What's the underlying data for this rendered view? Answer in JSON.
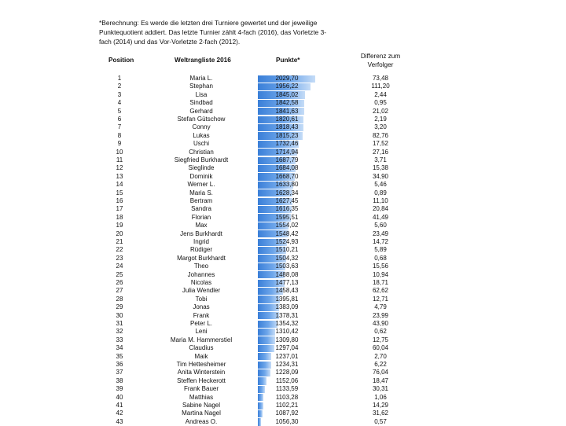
{
  "note": "*Berechnung: Es werde die letzten drei Turniere gewertet und der jeweilige Punktequotient addiert. Das letzte Turnier zählt 4-fach (2016), das Vorletzte 3-fach (2014) und das Vor-Vorletzte 2-fach (2012).",
  "headers": {
    "position": "Position",
    "name": "Weltrangliste 2016",
    "points": "Punkte*",
    "diff_line1": "Differenz zum",
    "diff_line2": "Verfolger"
  },
  "points_scale": {
    "min": 1000,
    "max": 2050
  },
  "rows": [
    {
      "pos": "1",
      "name": "Maria L.",
      "points": "2029,70",
      "pv": 2029.7,
      "diff": "73,48"
    },
    {
      "pos": "2",
      "name": "Stephan",
      "points": "1956,22",
      "pv": 1956.22,
      "diff": "111,20"
    },
    {
      "pos": "3",
      "name": "Lisa",
      "points": "1845,02",
      "pv": 1845.02,
      "diff": "2,44"
    },
    {
      "pos": "4",
      "name": "Sindbad",
      "points": "1842,58",
      "pv": 1842.58,
      "diff": "0,95"
    },
    {
      "pos": "5",
      "name": "Gerhard",
      "points": "1841,63",
      "pv": 1841.63,
      "diff": "21,02"
    },
    {
      "pos": "6",
      "name": "Stefan Gütschow",
      "points": "1820,61",
      "pv": 1820.61,
      "diff": "2,19"
    },
    {
      "pos": "7",
      "name": "Conny",
      "points": "1818,43",
      "pv": 1818.43,
      "diff": "3,20"
    },
    {
      "pos": "8",
      "name": "Lukas",
      "points": "1815,23",
      "pv": 1815.23,
      "diff": "82,76"
    },
    {
      "pos": "9",
      "name": "Uschi",
      "points": "1732,46",
      "pv": 1732.46,
      "diff": "17,52"
    },
    {
      "pos": "10",
      "name": "Christian",
      "points": "1714,94",
      "pv": 1714.94,
      "diff": "27,16"
    },
    {
      "pos": "11",
      "name": "Siegfried Burkhardt",
      "points": "1687,79",
      "pv": 1687.79,
      "diff": "3,71"
    },
    {
      "pos": "12",
      "name": "Sieglinde",
      "points": "1684,08",
      "pv": 1684.08,
      "diff": "15,38"
    },
    {
      "pos": "13",
      "name": "Dominik",
      "points": "1668,70",
      "pv": 1668.7,
      "diff": "34,90"
    },
    {
      "pos": "14",
      "name": "Werner L.",
      "points": "1633,80",
      "pv": 1633.8,
      "diff": "5,46"
    },
    {
      "pos": "15",
      "name": "Maria S.",
      "points": "1628,34",
      "pv": 1628.34,
      "diff": "0,89"
    },
    {
      "pos": "16",
      "name": "Bertram",
      "points": "1627,45",
      "pv": 1627.45,
      "diff": "11,10"
    },
    {
      "pos": "17",
      "name": "Sandra",
      "points": "1616,35",
      "pv": 1616.35,
      "diff": "20,84"
    },
    {
      "pos": "18",
      "name": "Florian",
      "points": "1595,51",
      "pv": 1595.51,
      "diff": "41,49"
    },
    {
      "pos": "19",
      "name": "Max",
      "points": "1554,02",
      "pv": 1554.02,
      "diff": "5,60"
    },
    {
      "pos": "20",
      "name": "Jens Burkhardt",
      "points": "1548,42",
      "pv": 1548.42,
      "diff": "23,49"
    },
    {
      "pos": "21",
      "name": "Ingrid",
      "points": "1524,93",
      "pv": 1524.93,
      "diff": "14,72"
    },
    {
      "pos": "22",
      "name": "Rüdiger",
      "points": "1510,21",
      "pv": 1510.21,
      "diff": "5,89"
    },
    {
      "pos": "23",
      "name": "Margot Burkhardt",
      "points": "1504,32",
      "pv": 1504.32,
      "diff": "0,68"
    },
    {
      "pos": "24",
      "name": "Theo",
      "points": "1503,63",
      "pv": 1503.63,
      "diff": "15,56"
    },
    {
      "pos": "25",
      "name": "Johannes",
      "points": "1488,08",
      "pv": 1488.08,
      "diff": "10,94"
    },
    {
      "pos": "26",
      "name": "Nicolas",
      "points": "1477,13",
      "pv": 1477.13,
      "diff": "18,71"
    },
    {
      "pos": "27",
      "name": "Julia Wendler",
      "points": "1458,43",
      "pv": 1458.43,
      "diff": "62,62"
    },
    {
      "pos": "28",
      "name": "Tobi",
      "points": "1395,81",
      "pv": 1395.81,
      "diff": "12,71"
    },
    {
      "pos": "29",
      "name": "Jonas",
      "points": "1383,09",
      "pv": 1383.09,
      "diff": "4,79"
    },
    {
      "pos": "30",
      "name": "Frank",
      "points": "1378,31",
      "pv": 1378.31,
      "diff": "23,99"
    },
    {
      "pos": "31",
      "name": "Peter L.",
      "points": "1354,32",
      "pv": 1354.32,
      "diff": "43,90"
    },
    {
      "pos": "32",
      "name": "Leni",
      "points": "1310,42",
      "pv": 1310.42,
      "diff": "0,62"
    },
    {
      "pos": "33",
      "name": "Maria M. Hammerstiel",
      "points": "1309,80",
      "pv": 1309.8,
      "diff": "12,75"
    },
    {
      "pos": "34",
      "name": "Claudius",
      "points": "1297,04",
      "pv": 1297.04,
      "diff": "60,04"
    },
    {
      "pos": "35",
      "name": "Maik",
      "points": "1237,01",
      "pv": 1237.01,
      "diff": "2,70"
    },
    {
      "pos": "36",
      "name": "Tim Hettesheimer",
      "points": "1234,31",
      "pv": 1234.31,
      "diff": "6,22"
    },
    {
      "pos": "37",
      "name": "Anita Winterstein",
      "points": "1228,09",
      "pv": 1228.09,
      "diff": "76,04"
    },
    {
      "pos": "38",
      "name": "Steffen Heckerott",
      "points": "1152,06",
      "pv": 1152.06,
      "diff": "18,47"
    },
    {
      "pos": "39",
      "name": "Frank Bauer",
      "points": "1133,59",
      "pv": 1133.59,
      "diff": "30,31"
    },
    {
      "pos": "40",
      "name": "Matthias",
      "points": "1103,28",
      "pv": 1103.28,
      "diff": "1,06"
    },
    {
      "pos": "41",
      "name": "Sabine Nagel",
      "points": "1102,21",
      "pv": 1102.21,
      "diff": "14,29"
    },
    {
      "pos": "42",
      "name": "Martina Nagel",
      "points": "1087,92",
      "pv": 1087.92,
      "diff": "31,62"
    },
    {
      "pos": "43",
      "name": "Andreas O.",
      "points": "1056,30",
      "pv": 1056.3,
      "diff": "0,57"
    }
  ]
}
